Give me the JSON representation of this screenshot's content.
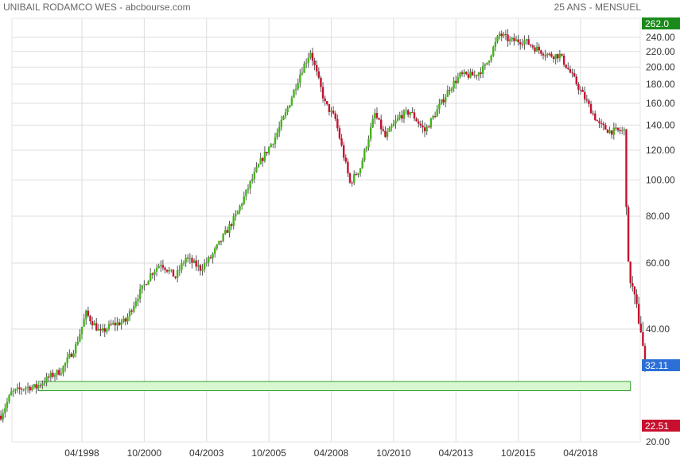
{
  "header": {
    "title": "UNIBAIL RODAMCO WES - abcbourse.com",
    "period": "25 ANS - MENSUEL"
  },
  "chart_data": {
    "type": "candlestick",
    "scale": "log",
    "ylim": [
      20,
      262
    ],
    "y_ticks": [
      "240.00",
      "220.00",
      "200.00",
      "180.00",
      "160.00",
      "140.00",
      "120.00",
      "100.00",
      "80.00",
      "60.00",
      "40.00",
      "20.00"
    ],
    "x_ticks": [
      "04/1998",
      "10/2000",
      "04/2003",
      "10/2005",
      "04/2008",
      "10/2010",
      "04/2013",
      "10/2015",
      "04/2018"
    ],
    "price_labels": {
      "high": "262.0",
      "last": "32.11",
      "low": "22.51"
    },
    "colors": {
      "up": "#44b41a",
      "down": "#c8102e",
      "high_box": "#1a8a1a",
      "last_box": "#2c6fd6",
      "low_box": "#c8102e",
      "zone_fill": "#d8f7d0",
      "zone_stroke": "#2e9e2e",
      "grid": "#dddddd"
    },
    "support_zone": {
      "from": "07/1996",
      "to": "04/2020",
      "low": 27.4,
      "high": 29.0
    },
    "series_points": [
      [
        "01/1995",
        23.5
      ],
      [
        "06/1995",
        27.0
      ],
      [
        "01/1996",
        28.0
      ],
      [
        "06/1996",
        28.0
      ],
      [
        "01/1997",
        30.0
      ],
      [
        "06/1997",
        31.0
      ],
      [
        "01/1998",
        36.0
      ],
      [
        "06/1998",
        44.0
      ],
      [
        "01/1999",
        39.0
      ],
      [
        "06/1999",
        41.0
      ],
      [
        "01/2000",
        42.0
      ],
      [
        "06/2000",
        48.0
      ],
      [
        "01/2001",
        56.0
      ],
      [
        "06/2001",
        60.0
      ],
      [
        "01/2002",
        55.0
      ],
      [
        "06/2002",
        62.0
      ],
      [
        "01/2003",
        58.0
      ],
      [
        "06/2003",
        62.0
      ],
      [
        "01/2004",
        72.0
      ],
      [
        "06/2004",
        80.0
      ],
      [
        "01/2005",
        98.0
      ],
      [
        "06/2005",
        112.0
      ],
      [
        "01/2006",
        130.0
      ],
      [
        "06/2006",
        150.0
      ],
      [
        "01/2007",
        192.0
      ],
      [
        "06/2007",
        220.0
      ],
      [
        "01/2008",
        160.0
      ],
      [
        "06/2008",
        145.0
      ],
      [
        "01/2009",
        98.0
      ],
      [
        "06/2009",
        108.0
      ],
      [
        "01/2010",
        150.0
      ],
      [
        "06/2010",
        130.0
      ],
      [
        "01/2011",
        148.0
      ],
      [
        "06/2011",
        152.0
      ],
      [
        "01/2012",
        135.0
      ],
      [
        "06/2012",
        150.0
      ],
      [
        "01/2013",
        176.0
      ],
      [
        "06/2013",
        190.0
      ],
      [
        "01/2014",
        190.0
      ],
      [
        "06/2014",
        200.0
      ],
      [
        "01/2015",
        245.0
      ],
      [
        "06/2015",
        235.0
      ],
      [
        "01/2016",
        235.0
      ],
      [
        "06/2016",
        225.0
      ],
      [
        "01/2017",
        215.0
      ],
      [
        "06/2017",
        215.0
      ],
      [
        "01/2018",
        185.0
      ],
      [
        "06/2018",
        165.0
      ],
      [
        "01/2019",
        140.0
      ],
      [
        "06/2019",
        135.0
      ],
      [
        "01/2020",
        135.0
      ],
      [
        "03/2020",
        58.0
      ],
      [
        "06/2020",
        48.0
      ],
      [
        "09/2020",
        40.0
      ],
      [
        "11/2020",
        32.11
      ]
    ]
  }
}
